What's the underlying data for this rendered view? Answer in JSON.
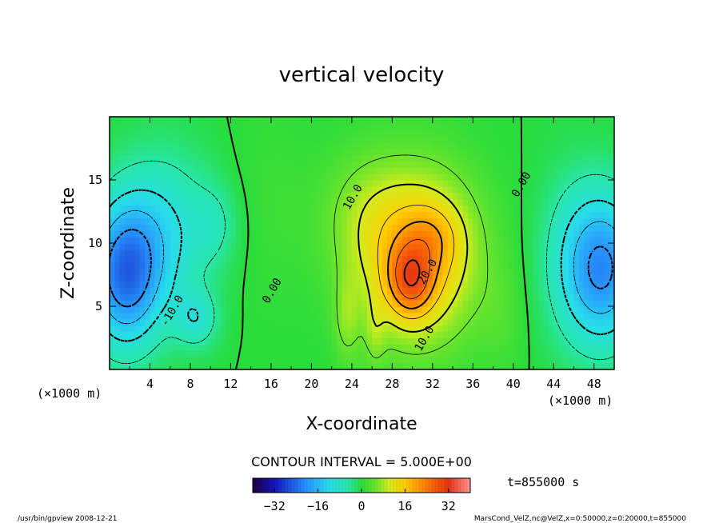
{
  "chart_data": {
    "type": "heatmap",
    "title": "vertical velocity",
    "xlabel": "X-coordinate",
    "ylabel": "Z-coordinate",
    "x_unit_left": "(×1000 m)",
    "x_unit_right": "(×1000 m)",
    "xlim": [
      0,
      50
    ],
    "ylim": [
      0,
      20
    ],
    "xticks": [
      4,
      8,
      12,
      16,
      20,
      24,
      28,
      32,
      36,
      40,
      44,
      48
    ],
    "yticks": [
      5,
      10,
      15
    ],
    "contour_labels": [
      {
        "text": "10.0",
        "x": 24.4,
        "y": 13.5
      },
      {
        "text": "0.00",
        "x": 41.1,
        "y": 14.5
      },
      {
        "text": "20.0",
        "x": 31.8,
        "y": 7.6
      },
      {
        "text": "10.0",
        "x": 31.5,
        "y": 2.3
      },
      {
        "text": "0.00",
        "x": 16.4,
        "y": 6.1
      },
      {
        "text": "-10.0",
        "x": 6.5,
        "y": 4.5
      }
    ],
    "contour_interval_text": "CONTOUR INTERVAL = 5.000E+00",
    "time_text": "t=855000 s",
    "colorbar": {
      "min": -40,
      "max": 40,
      "ticks": [
        "−32",
        "−16",
        "0",
        "16",
        "32"
      ]
    },
    "features": [
      {
        "name": "updraft-max",
        "x": 29.8,
        "z": 7.0,
        "value": 34
      },
      {
        "name": "updraft-secondary",
        "x": 31.4,
        "z": 10.0,
        "value": 20
      },
      {
        "name": "left-downdraft",
        "x": 1.5,
        "z": 7.2,
        "value": -22
      },
      {
        "name": "right-downdraft",
        "x": 49.0,
        "z": 8.0,
        "value": -20
      },
      {
        "name": "lower-left-downdraft",
        "x": 8.6,
        "z": 4.0,
        "value": -15
      }
    ]
  },
  "footer": {
    "left": "/usr/bin/gpview   2008-12-21",
    "right": "MarsCond_VelZ.nc@VelZ,x=0:50000,z=0:20000,t=855000"
  }
}
